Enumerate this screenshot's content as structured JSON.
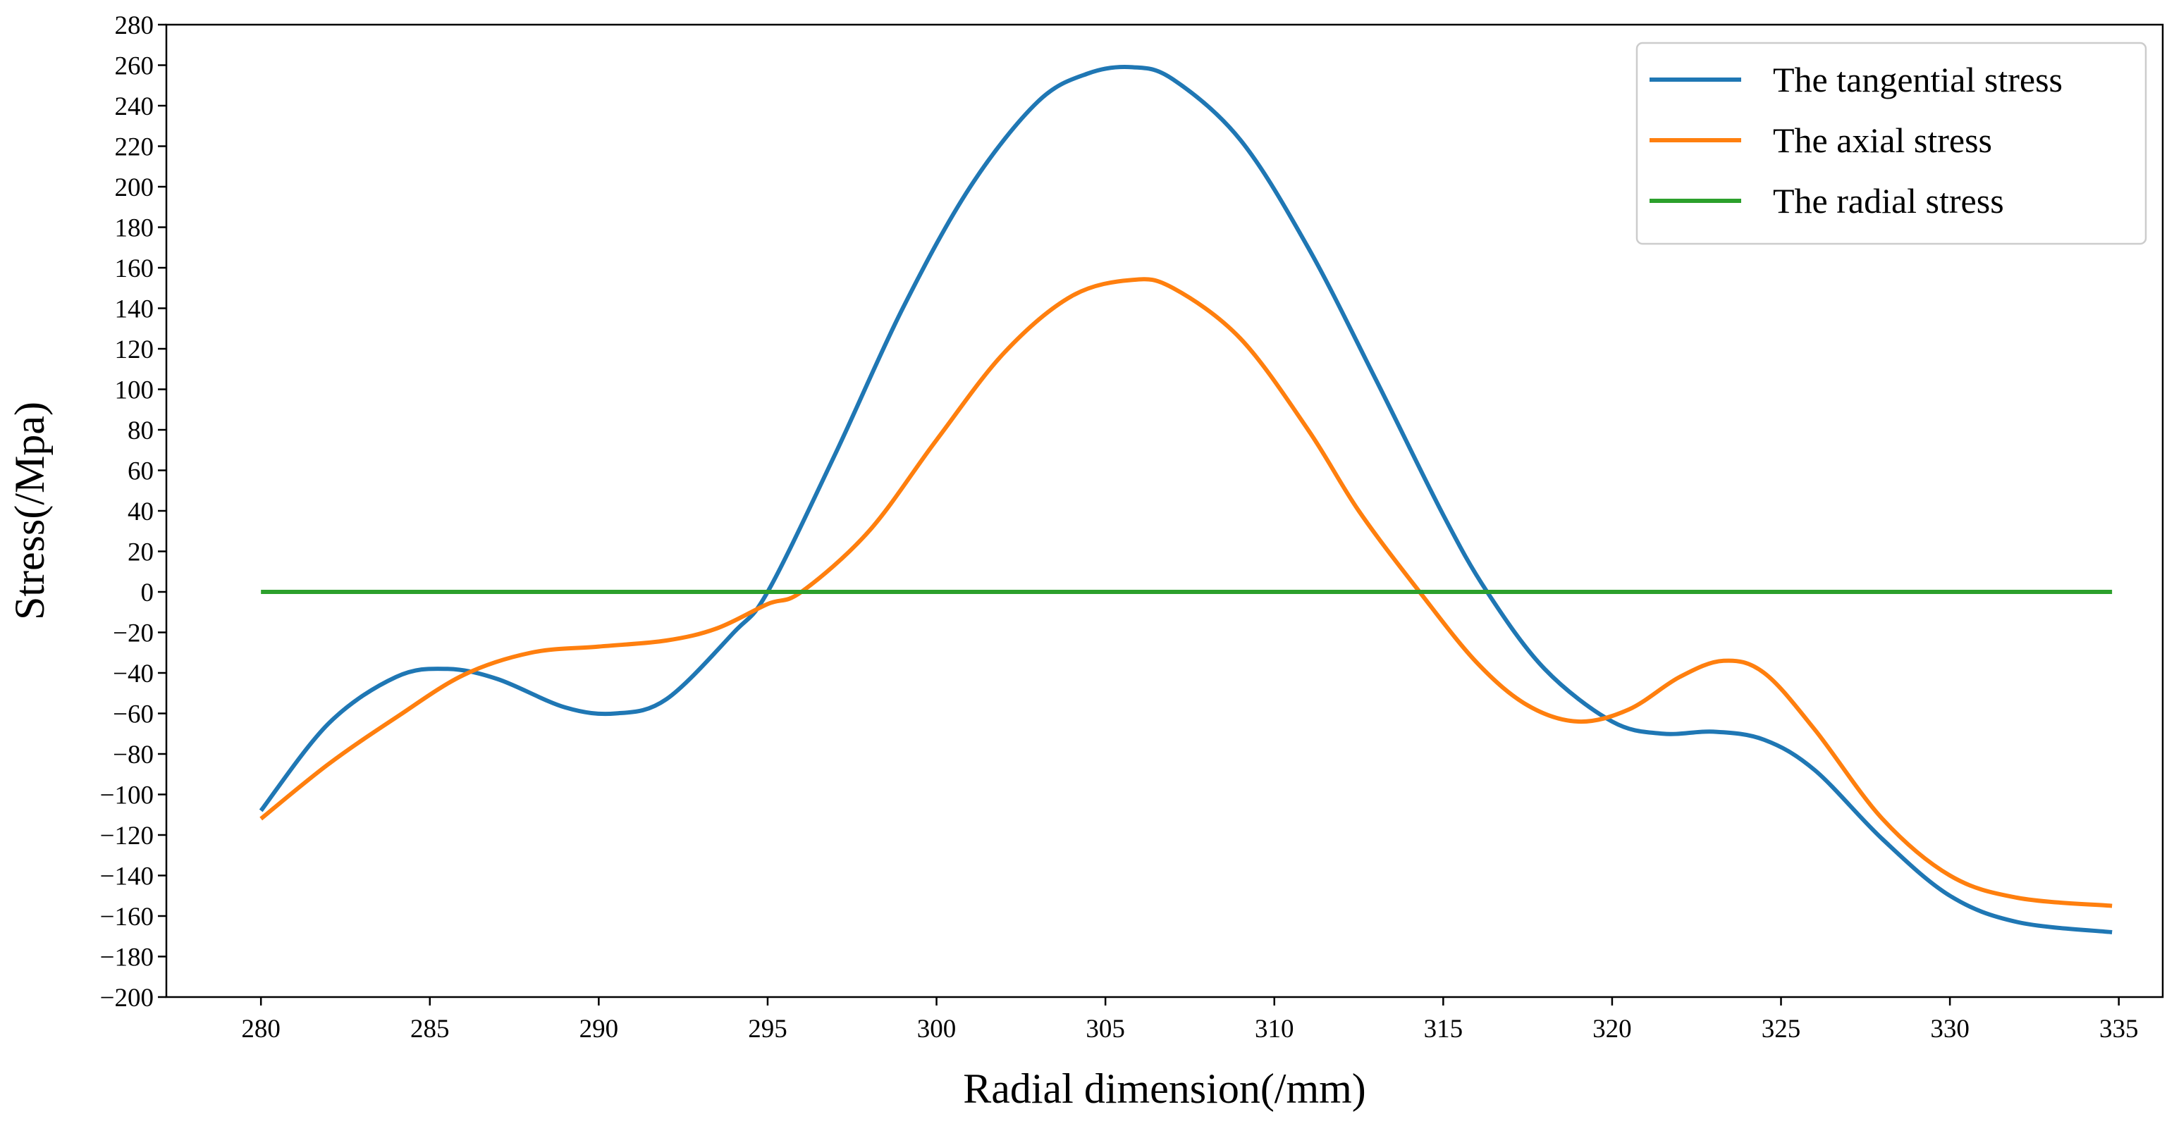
{
  "chart_data": {
    "type": "line",
    "title": "",
    "xlabel": "Radial dimension(/mm)",
    "ylabel": "Stress(/Mpa)",
    "xlim": [
      277.2,
      336.3
    ],
    "ylim": [
      -200,
      280
    ],
    "xticks": [
      280,
      285,
      290,
      295,
      300,
      305,
      310,
      315,
      320,
      325,
      330,
      335
    ],
    "yticks": [
      -200,
      -180,
      -160,
      -140,
      -120,
      -100,
      -80,
      -60,
      -40,
      -20,
      0,
      20,
      40,
      60,
      80,
      100,
      120,
      140,
      160,
      180,
      200,
      220,
      240,
      260,
      280
    ],
    "grid": false,
    "legend_position": "top-right",
    "series": [
      {
        "name": "The tangential stress",
        "color": "#1f77b4",
        "x": [
          280,
          282,
          284,
          285.5,
          287,
          289,
          290.5,
          292,
          294,
          295,
          297,
          299,
          301,
          303,
          304.5,
          305.8,
          307,
          309,
          311,
          313,
          315,
          316.3,
          318,
          320,
          321.5,
          323,
          324.5,
          326,
          328,
          330,
          332,
          334.8
        ],
        "y": [
          -108,
          -65,
          -42,
          -38,
          -43,
          -57,
          -60,
          -53,
          -20,
          0,
          68,
          140,
          200,
          242,
          256,
          259,
          253,
          223,
          170,
          105,
          38,
          0,
          -38,
          -64,
          -70,
          -69,
          -73,
          -88,
          -122,
          -150,
          -163,
          -168
        ]
      },
      {
        "name": "The axial stress",
        "color": "#ff7f0e",
        "x": [
          280,
          282,
          284,
          286,
          288,
          290,
          292,
          293.5,
          295,
          296,
          298,
          300,
          302,
          304,
          305.8,
          307,
          309,
          311,
          312.5,
          314.3,
          316,
          317.5,
          319,
          320.5,
          322,
          323.3,
          324.5,
          326,
          328,
          330,
          332,
          334.8
        ],
        "y": [
          -112,
          -85,
          -62,
          -41,
          -30,
          -27,
          -24,
          -18,
          -6,
          0,
          30,
          75,
          118,
          146,
          154,
          150,
          125,
          80,
          40,
          0,
          -35,
          -56,
          -64,
          -58,
          -42,
          -34,
          -40,
          -68,
          -112,
          -140,
          -151,
          -155
        ]
      },
      {
        "name": "The radial stress",
        "color": "#2ca02c",
        "x": [
          280,
          334.8
        ],
        "y": [
          0,
          0
        ]
      }
    ]
  }
}
